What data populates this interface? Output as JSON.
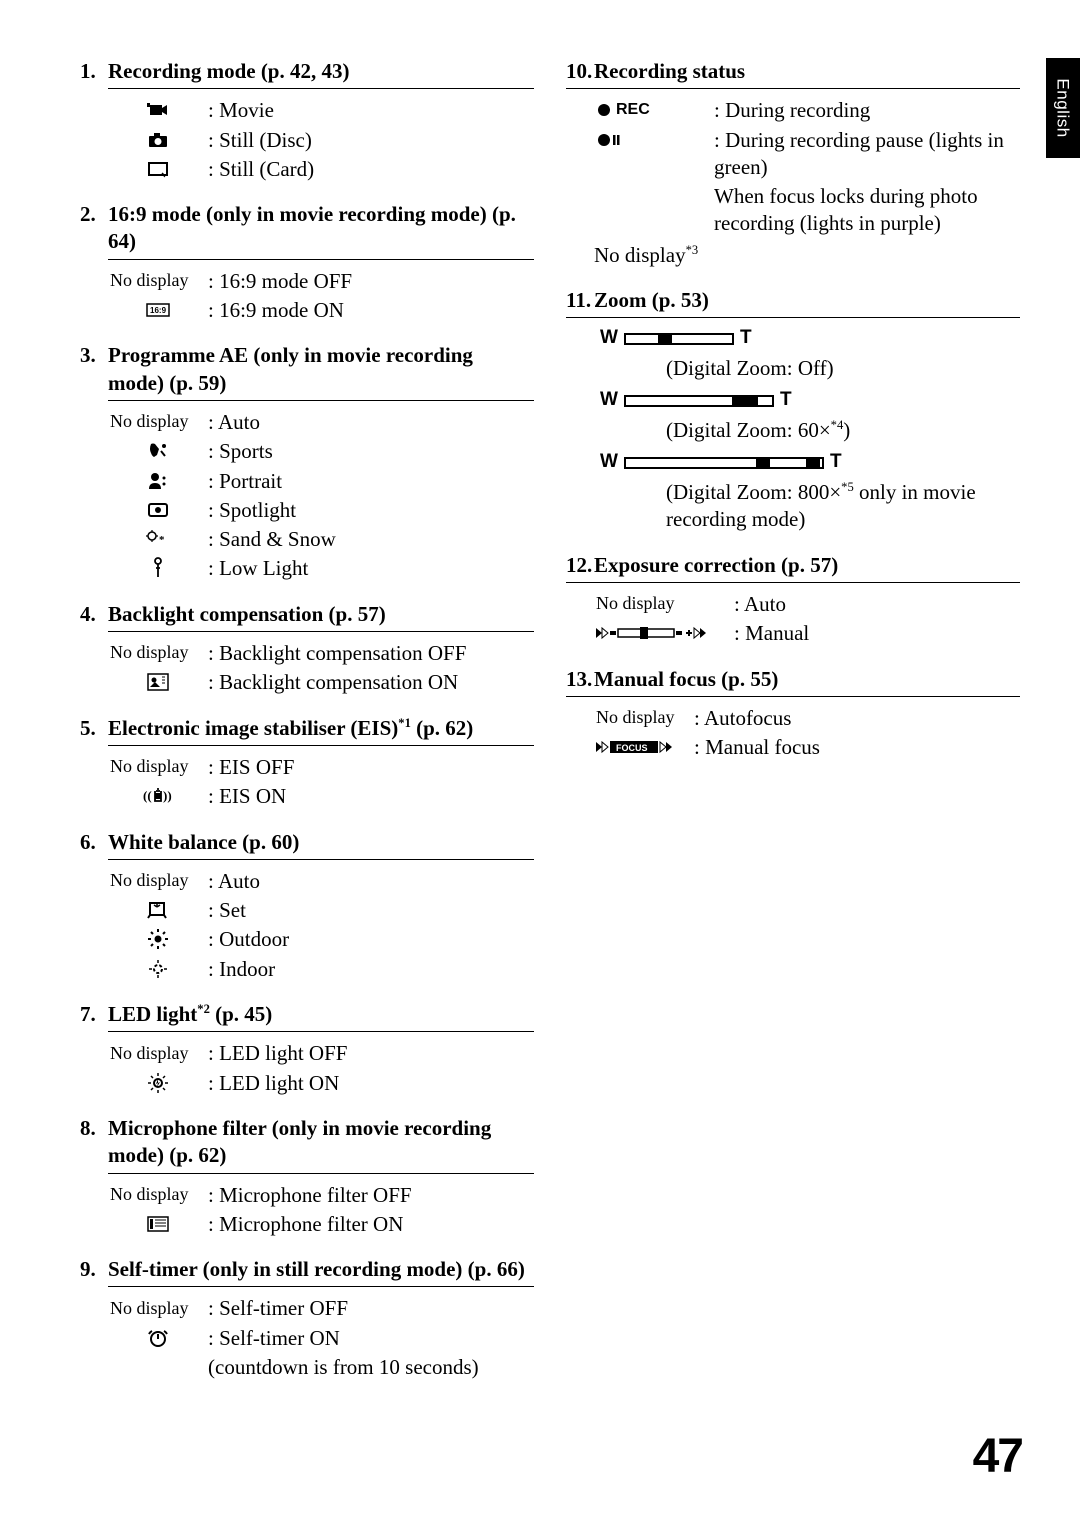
{
  "sidebar_label": "English",
  "page_number": "47",
  "left_sections": [
    {
      "num": "1.",
      "title": "Recording mode (p. 42, 43)",
      "items": [
        {
          "icon": "movie-camera",
          "desc": "Movie"
        },
        {
          "icon": "still-camera",
          "desc": "Still (Disc)"
        },
        {
          "icon": "card-rect",
          "desc": "Still (Card)"
        }
      ]
    },
    {
      "num": "2.",
      "title": "16:9 mode (only in movie recording mode) (p. 64)",
      "items": [
        {
          "label": "No display",
          "desc": "16:9 mode OFF"
        },
        {
          "icon": "sixteen-nine",
          "desc": "16:9 mode ON"
        }
      ]
    },
    {
      "num": "3.",
      "title": "Programme AE (only in movie recording mode) (p. 59)",
      "items": [
        {
          "label": "No display",
          "desc": "Auto"
        },
        {
          "icon": "sports",
          "desc": "Sports"
        },
        {
          "icon": "portrait",
          "desc": "Portrait"
        },
        {
          "icon": "spotlight",
          "desc": "Spotlight"
        },
        {
          "icon": "sand-snow",
          "desc": "Sand & Snow"
        },
        {
          "icon": "low-light",
          "desc": "Low Light"
        }
      ]
    },
    {
      "num": "4.",
      "title": "Backlight compensation (p. 57)",
      "items": [
        {
          "label": "No display",
          "desc": "Backlight compensation OFF"
        },
        {
          "icon": "backlight",
          "desc": "Backlight compensation ON"
        }
      ]
    },
    {
      "num": "5.",
      "title_html": "Electronic image stabiliser (EIS)<sup>*1</sup> (p. 62)",
      "items": [
        {
          "label": "No display",
          "desc": "EIS OFF"
        },
        {
          "icon": "eis",
          "desc": "EIS ON"
        }
      ]
    },
    {
      "num": "6.",
      "title": "White balance (p. 60)",
      "items": [
        {
          "label": "No display",
          "desc": "Auto"
        },
        {
          "icon": "wb-set",
          "desc": "Set"
        },
        {
          "icon": "outdoor",
          "desc": "Outdoor"
        },
        {
          "icon": "indoor",
          "desc": "Indoor"
        }
      ]
    },
    {
      "num": "7.",
      "title_html": "LED light<sup>*2</sup> (p. 45)",
      "items": [
        {
          "label": "No display",
          "desc": "LED light OFF"
        },
        {
          "icon": "led",
          "desc": "LED light ON"
        }
      ]
    },
    {
      "num": "8.",
      "title": "Microphone filter (only in movie recording mode) (p. 62)",
      "items": [
        {
          "label": "No display",
          "desc": "Microphone filter OFF"
        },
        {
          "icon": "mic-filter",
          "desc": "Microphone filter ON"
        }
      ]
    },
    {
      "num": "9.",
      "title": "Self-timer (only in still recording mode) (p. 66)",
      "items": [
        {
          "label": "No display",
          "desc": "Self-timer OFF"
        },
        {
          "icon": "self-timer",
          "desc": "Self-timer ON",
          "continuation": "(countdown is from 10 seconds)"
        }
      ]
    }
  ],
  "right_sections": {
    "s10": {
      "num": "10.",
      "title": "Recording status",
      "rec_label": "REC",
      "rec_desc": "During recording",
      "pause_desc": "During recording pause (lights in green)",
      "pause_cont1": "When focus locks during photo recording (lights in purple)",
      "nodisplay_html": "No display<sup>*3</sup>"
    },
    "s11": {
      "num": "11.",
      "title": "Zoom (p. 53)",
      "z1_desc": "(Digital Zoom: Off)",
      "z2_desc_html": "(Digital Zoom: 60×<sup>*4</sup>)",
      "z3_desc_html": "(Digital Zoom: 800×<sup>*5</sup> only in movie recording mode)"
    },
    "s12": {
      "num": "12.",
      "title": "Exposure correction (p. 57)",
      "items": [
        {
          "label": "No display",
          "desc": "Auto",
          "wide_label": true
        },
        {
          "icon": "exposure-slider",
          "desc": "Manual"
        }
      ]
    },
    "s13": {
      "num": "13.",
      "title": "Manual focus (p. 55)",
      "items": [
        {
          "label": "No display",
          "desc": "Autofocus"
        },
        {
          "icon": "manual-focus",
          "desc": "Manual focus"
        }
      ]
    }
  },
  "icons_svg": {
    "movie-camera": "<svg width='22' height='18' viewBox='0 0 22 18'><rect x='3' y='4' width='12' height='10' fill='#000'/><polygon points='15,7 20,4 20,14 15,11' fill='#000'/><rect x='0' y='2' width='3' height='4' fill='#000'/></svg>",
    "still-camera": "<svg width='22' height='18' viewBox='0 0 22 18'><rect x='2' y='5' width='18' height='11' rx='1' fill='#000'/><rect x='7' y='2' width='6' height='4' fill='#000'/><circle cx='11' cy='10.5' r='3.5' fill='#fff'/></svg>",
    "card-rect": "<svg width='22' height='18' viewBox='0 0 22 18'><rect x='2' y='3' width='18' height='12' fill='none' stroke='#000' stroke-width='2'/><path d='M17 15 L15 13' stroke='#000' stroke-width='1.5' fill='none'/><path d='M18 17 L15 14' stroke='#000' stroke-width='1' fill='none'/></svg>",
    "sixteen-nine": "<svg width='24' height='14' viewBox='0 0 24 14'><rect x='1' y='1' width='22' height='12' fill='none' stroke='#000' stroke-width='1.5'/><text x='4' y='10' font-size='8' font-family='Arial' font-weight='bold'>16:9</text></svg>",
    "sports": "<svg width='22' height='20' viewBox='0 0 22 20'><path d='M4 3 Q6 2 8 3 L12 8 L10 14 L7 16 Q5 15 4 12 Q2 8 4 3' fill='#000'/><circle cx='17' cy='5' r='2' fill='#000'/><path d='M14 10 L18 15' stroke='#000' stroke-width='2'/></svg>",
    "portrait": "<svg width='22' height='20' viewBox='0 0 22 20'><circle cx='8' cy='6' r='4' fill='#000'/><path d='M2 18 Q2 12 8 12 Q14 12 14 18' fill='#000'/><circle cx='17' cy='7' r='1.5' fill='#000'/><circle cx='17' cy='13' r='1.5' fill='#000'/></svg>",
    "spotlight": "<svg width='22' height='18' viewBox='0 0 22 18'><rect x='2' y='3' width='18' height='12' rx='2' fill='none' stroke='#000' stroke-width='2'/><circle cx='11' cy='9' r='3' fill='#000'/></svg>",
    "sand-snow": "<svg width='24' height='18' viewBox='0 0 24 18'><circle cx='6' cy='6' r='4' fill='none' stroke='#000' stroke-width='1.5'/><path d='M6 0 L6 2 M6 10 L6 12 M0 6 L2 6 M10 6 L12 6' stroke='#000' stroke-width='1.2'/><text x='13' y='13' font-size='11' font-weight='bold'>*</text></svg>",
    "low-light": "<svg width='14' height='22' viewBox='0 0 14 22'><circle cx='7' cy='4' r='3' fill='none' stroke='#000' stroke-width='1.8'/><path d='M7 7 L7 20 M5 11 L9 11' stroke='#000' stroke-width='1.8' fill='none'/></svg>",
    "backlight": "<svg width='22' height='18' viewBox='0 0 22 18'><rect x='1' y='1' width='20' height='16' fill='none' stroke='#000' stroke-width='1.5'/><circle cx='7' cy='7' r='2.5' fill='#000'/><path d='M3 14 L8 9 L13 14' fill='#000'/><path d='M15 4 L18 4 M15 7 L18 7 M15 10 L18 10' stroke='#000' stroke-width='1'/></svg>",
    "eis": "<svg width='30' height='18' viewBox='0 0 30 18'><text x='0' y='13' font-size='13' font-weight='bold'>((</text><path d='M12 4 L12 14 L18 14 L18 4 M13 4 L17 4 M14 2 L16 2' fill='none' stroke='#000' stroke-width='1.8'/><rect x='12' y='6' width='6' height='6' fill='#000'/><text x='20' y='13' font-size='13' font-weight='bold'>))</text></svg>",
    "wb-set": "<svg width='22' height='18' viewBox='0 0 22 18'><rect x='3' y='2' width='14' height='12' fill='none' stroke='#000' stroke-width='2'/><path d='M3 14 L1 17 M17 14 L19 17' stroke='#000' stroke-width='2'/><path d='M10 2 L10 6 M10 6 L7 4 M10 6 L13 4' stroke='#000' stroke-width='1.5' fill='none'/></svg>",
    "outdoor": "<svg width='22' height='22' viewBox='0 0 22 22'><circle cx='11' cy='11' r='3.5' fill='#000'/><g stroke='#000' stroke-width='2'><line x1='11' y1='1' x2='11' y2='4'/><line x1='11' y1='18' x2='11' y2='21'/><line x1='1' y1='11' x2='4' y2='11'/><line x1='18' y1='11' x2='21' y2='11'/><line x1='4' y1='4' x2='6' y2='6'/><line x1='16' y1='16' x2='18' y2='18'/><line x1='16' y1='6' x2='18' y2='4'/><line x1='4' y1='18' x2='6' y2='16'/></g></svg>",
    "indoor": "<svg width='22' height='22' viewBox='0 0 22 22'><circle cx='11' cy='11' r='4' fill='none' stroke='#000' stroke-width='2' stroke-dasharray='3 2'/><g stroke='#000' stroke-width='1.5'><line x1='11' y1='2' x2='11' y2='5'/><line x1='11' y1='17' x2='11' y2='20'/><line x1='2' y1='11' x2='5' y2='11'/><line x1='17' y1='11' x2='20' y2='11'/></g></svg>",
    "led": "<svg width='22' height='22' viewBox='0 0 22 22'><circle cx='11' cy='11' r='4' fill='none' stroke='#000' stroke-width='2'/><polygon points='11,7 9,12 11,11 10,15 13,10 11,11' fill='#000'/><g stroke='#000' stroke-width='1.5'><line x1='11' y1='1' x2='11' y2='4'/><line x1='11' y1='18' x2='11' y2='21'/><line x1='1' y1='11' x2='4' y2='11'/><line x1='18' y1='11' x2='21' y2='11'/><line x1='4' y1='4' x2='6' y2='6'/><line x1='16' y1='16' x2='18' y2='18'/><line x1='16' y1='6' x2='18' y2='4'/><line x1='4' y1='18' x2='6' y2='16'/></g></svg>",
    "mic-filter": "<svg width='22' height='18' viewBox='0 0 22 18'><rect x='1' y='2' width='20' height='14' fill='none' stroke='#000' stroke-width='1.5'/><rect x='3' y='4' width='3' height='10' fill='#000'/><line x1='8' y1='5' x2='19' y2='5' stroke='#000' stroke-width='1'/><line x1='8' y1='8' x2='19' y2='8' stroke='#000' stroke-width='1'/><line x1='8' y1='11' x2='19' y2='11' stroke='#000' stroke-width='1'/></svg>",
    "self-timer": "<svg width='22' height='22' viewBox='0 0 22 22'><circle cx='11' cy='12' r='7' fill='none' stroke='#000' stroke-width='2'/><path d='M11 12 L11 7' stroke='#000' stroke-width='2'/><path d='M5 4 Q3 5 2 7' stroke='#000' stroke-width='2' fill='none'/><path d='M17 4 Q19 5 20 7' stroke='#000' stroke-width='2' fill='none'/></svg>",
    "rec-dot": "<svg width='16' height='16' viewBox='0 0 16 16'><circle cx='8' cy='8' r='6' fill='#000'/></svg>",
    "pause-dot": "<svg width='24' height='16' viewBox='0 0 24 16'><circle cx='8' cy='8' r='6' fill='#000'/><rect x='17' y='3' width='2.5' height='10' fill='#000'/><rect x='21' y='3' width='2.5' height='10' fill='#000'/></svg>",
    "exposure-slider": "<svg width='110' height='16' viewBox='0 0 110 16'><polygon points='0,3 0,13 6,8' fill='#000'/><polygon points='6,3 6,13 12,8' fill='none' stroke='#000' stroke-width='1'/><rect x='14' y='6' width='6' height='4' fill='#000'/><rect x='22' y='4' width='56' height='8' fill='none' stroke='#000' stroke-width='1.5'/><rect x='44' y='2' width='8' height='12' fill='#000'/><rect x='80' y='6' width='6' height='4' fill='#000'/><line x1='90' y1='8' x2='96' y2='8' stroke='#000' stroke-width='2'/><line x1='93' y1='5' x2='93' y2='11' stroke='#000' stroke-width='2'/><polygon points='98,3 98,13 104,8' fill='none' stroke='#000' stroke-width='1'/><polygon points='104,3 104,13 110,8' fill='#000'/></svg>",
    "manual-focus": "<svg width='90' height='16' viewBox='0 0 90 16'><polygon points='0,3 0,13 6,8' fill='#000'/><polygon points='6,3 6,13 12,8' fill='none' stroke='#000' stroke-width='1'/><rect x='14' y='2' width='48' height='12' fill='#000'/><text x='20' y='12' font-size='9' font-family='Arial' font-weight='bold' fill='#fff'>FOCUS</text><polygon points='64,3 64,13 70,8' fill='none' stroke='#000' stroke-width='1'/><polygon points='70,3 70,13 76,8' fill='#000'/></svg>"
  }
}
